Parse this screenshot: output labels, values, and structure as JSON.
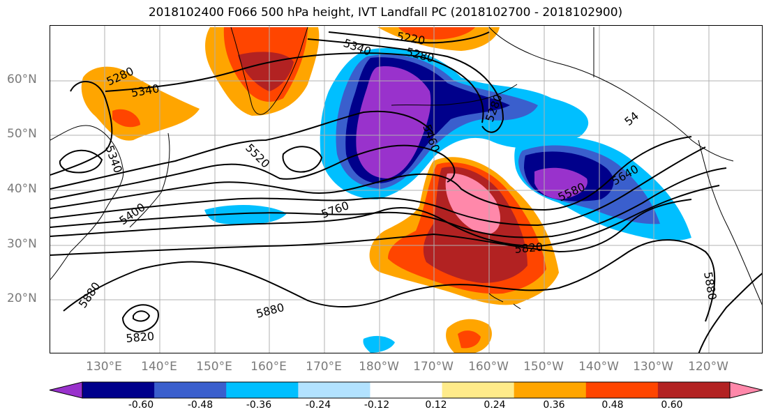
{
  "title": "2018102400 F066 500 hPa height, IVT Landfall PC (2018102700 - 2018102900)",
  "lat_labels": [
    "60°N",
    "50°N",
    "40°N",
    "30°N",
    "20°N"
  ],
  "lon_labels": [
    "130°E",
    "140°E",
    "150°E",
    "160°E",
    "170°E",
    "180°W",
    "170°W",
    "160°W",
    "150°W",
    "140°W",
    "130°W",
    "120°W"
  ],
  "colorbar": {
    "colors": [
      "#9932cc",
      "#00008b",
      "#3a5fcd",
      "#00bfff",
      "#b2e2ff",
      "#ffffff",
      "#ffeb8a",
      "#ffa500",
      "#ff4500",
      "#b22222",
      "#ff88aa"
    ],
    "labels": [
      "-0.60",
      "-0.48",
      "-0.36",
      "-0.24",
      "-0.12",
      "0.12",
      "0.24",
      "0.36",
      "0.48",
      "0.60"
    ]
  },
  "contour_labels": [
    "5220",
    "5340",
    "5280",
    "5280",
    "5340",
    "5340",
    "5280",
    "5520",
    "5460",
    "5400",
    "5760",
    "5820",
    "5580",
    "5640",
    "5880",
    "5880",
    "5880",
    "5820",
    "54"
  ],
  "colors": {
    "gridline": "#b0b0b0",
    "contour": "#000000",
    "axis_label": "#7a7a7a"
  }
}
